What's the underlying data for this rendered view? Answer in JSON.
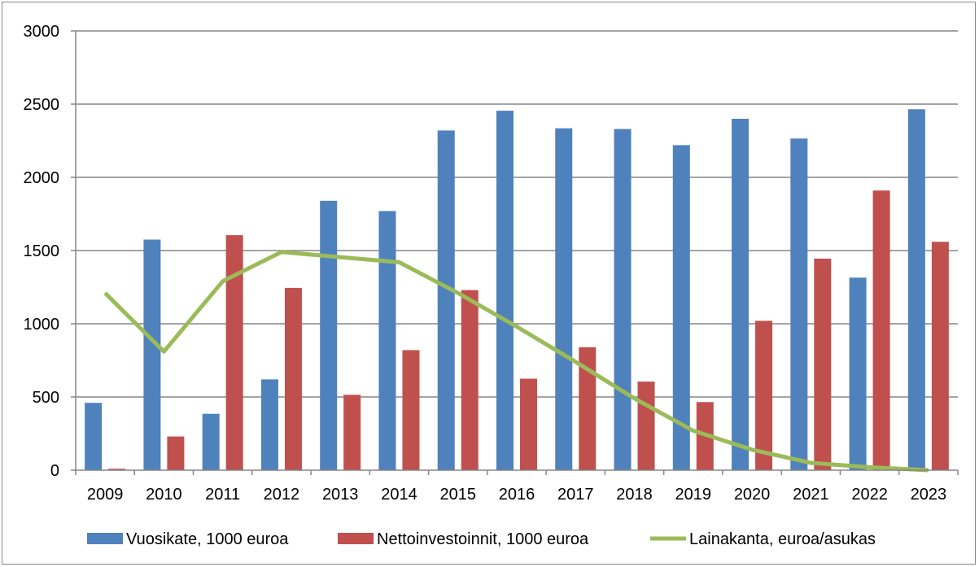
{
  "chart_data": {
    "type": "bar",
    "title": "",
    "xlabel": "",
    "ylabel": "",
    "categories": [
      "2009",
      "2010",
      "2011",
      "2012",
      "2013",
      "2014",
      "2015",
      "2016",
      "2017",
      "2018",
      "2019",
      "2020",
      "2021",
      "2022",
      "2023"
    ],
    "ylim": [
      0,
      3000
    ],
    "yticks": [
      0,
      500,
      1000,
      1500,
      2000,
      2500,
      3000
    ],
    "grid": true,
    "legend_position": "bottom",
    "series": [
      {
        "name": "Vuosikate, 1000 euroa",
        "kind": "bar",
        "color": "#4f81bd",
        "values": [
          460,
          1575,
          385,
          620,
          1840,
          1770,
          2320,
          2455,
          2335,
          2330,
          2220,
          2400,
          2265,
          1315,
          2465
        ]
      },
      {
        "name": "Nettoinvestoinnit, 1000 euroa",
        "kind": "bar",
        "color": "#c0504d",
        "values": [
          10,
          230,
          1605,
          1245,
          515,
          820,
          1230,
          625,
          840,
          605,
          465,
          1020,
          1445,
          1910,
          1560
        ]
      },
      {
        "name": "Lainakanta, euroa/asukas",
        "kind": "line",
        "color": "#9bbb59",
        "values": [
          1210,
          810,
          1290,
          1490,
          1455,
          1420,
          1210,
          980,
          740,
          490,
          270,
          140,
          50,
          20,
          0
        ]
      }
    ]
  }
}
